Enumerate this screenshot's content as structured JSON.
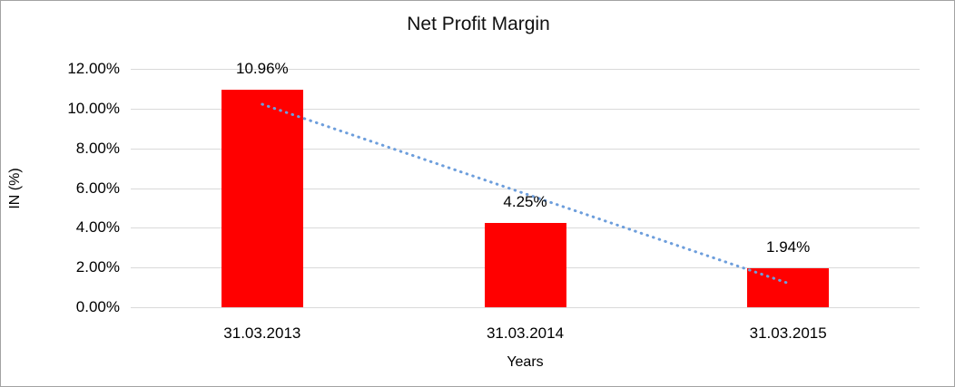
{
  "window": {
    "background": "#ffffff",
    "border_color": "#a3a3a3"
  },
  "chart_data": {
    "type": "bar",
    "title": "Net Profit Margin",
    "xlabel": "Years",
    "ylabel": "IN (%)",
    "categories": [
      "31.03.2013",
      "31.03.2014",
      "31.03.2015"
    ],
    "values": [
      10.96,
      4.25,
      1.94
    ],
    "data_labels": [
      "10.96%",
      "4.25%",
      "1.94%"
    ],
    "ylim": [
      0,
      12
    ],
    "yticks": [
      {
        "value": 12,
        "label": "12.00%"
      },
      {
        "value": 10,
        "label": "10.00%"
      },
      {
        "value": 8,
        "label": "8.00%"
      },
      {
        "value": 6,
        "label": "6.00%"
      },
      {
        "value": 4,
        "label": "4.00%"
      },
      {
        "value": 2,
        "label": "2.00%"
      },
      {
        "value": 0,
        "label": "0.00%"
      }
    ],
    "grid": "horizontal",
    "gridline_color": "#d9d9d9",
    "legend": "none",
    "bar_color": "#ff0000",
    "trendline": {
      "type": "linear",
      "style": "dotted",
      "color": "#6d9edc",
      "fit_values_percent": [
        10.22,
        5.72,
        1.21
      ]
    }
  }
}
